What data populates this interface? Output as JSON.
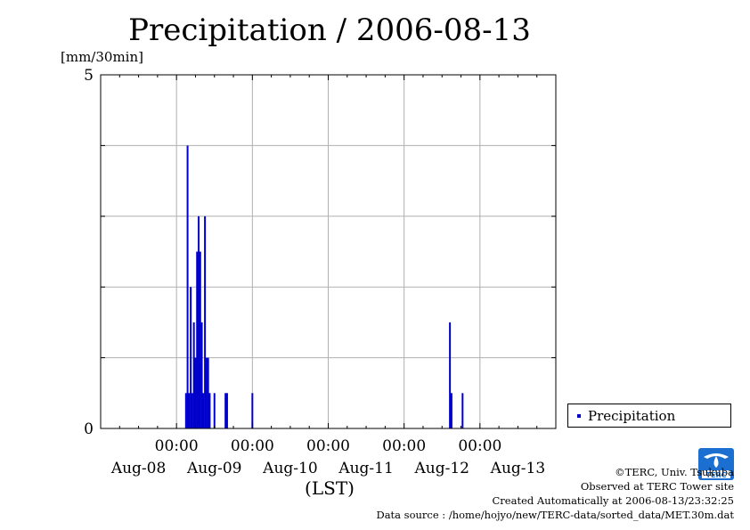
{
  "title": "Precipitation / 2006-08-13",
  "unit": "[mm/30min]",
  "legend_label": "Precipitation",
  "credits": {
    "copyright": "©TERC, Univ. Tsukuba",
    "site": "Observed at TERC Tower site",
    "created": "Created Automatically at 2006-08-13/23:32:25",
    "source": "Data source : /home/hojyo/new/TERC-data/sorted_data/MET.30m.dat"
  },
  "logo_text": "TERC",
  "colors": {
    "bar": "#0000cc",
    "grid": "#b0b0b0",
    "axis": "#000000"
  },
  "chart_data": {
    "type": "bar",
    "title": "Precipitation / 2006-08-13",
    "ylabel": "[mm/30min]",
    "xlabel": "(LST)",
    "ylim": [
      0,
      5
    ],
    "y_ticks": [
      {
        "value": 0,
        "label": "0"
      },
      {
        "value": 5,
        "label": "5"
      }
    ],
    "y_gridlines": [
      1,
      2,
      3,
      4
    ],
    "xlim": [
      "2006-08-08T00:00",
      "2006-08-14T00:00"
    ],
    "x_ticks": [
      {
        "t": "2006-08-09T00:00",
        "time": "00:00"
      },
      {
        "t": "2006-08-10T00:00",
        "time": "00:00"
      },
      {
        "t": "2006-08-11T00:00",
        "time": "00:00"
      },
      {
        "t": "2006-08-12T00:00",
        "time": "00:00"
      },
      {
        "t": "2006-08-13T00:00",
        "time": "00:00"
      }
    ],
    "x_day_labels": [
      {
        "t": "2006-08-08T12:00",
        "label": "Aug-08"
      },
      {
        "t": "2006-08-09T12:00",
        "label": "Aug-09"
      },
      {
        "t": "2006-08-10T12:00",
        "label": "Aug-10"
      },
      {
        "t": "2006-08-11T12:00",
        "label": "Aug-11"
      },
      {
        "t": "2006-08-12T12:00",
        "label": "Aug-12"
      },
      {
        "t": "2006-08-13T12:00",
        "label": "Aug-13"
      }
    ],
    "series": [
      {
        "name": "Precipitation",
        "points": [
          {
            "t": "2006-08-09T03:00",
            "v": 0.5
          },
          {
            "t": "2006-08-09T03:30",
            "v": 4.0
          },
          {
            "t": "2006-08-09T04:00",
            "v": 0.5
          },
          {
            "t": "2006-08-09T04:30",
            "v": 2.0
          },
          {
            "t": "2006-08-09T05:00",
            "v": 0.5
          },
          {
            "t": "2006-08-09T05:30",
            "v": 1.5
          },
          {
            "t": "2006-08-09T06:00",
            "v": 1.0
          },
          {
            "t": "2006-08-09T06:30",
            "v": 2.5
          },
          {
            "t": "2006-08-09T07:00",
            "v": 3.0
          },
          {
            "t": "2006-08-09T07:30",
            "v": 2.5
          },
          {
            "t": "2006-08-09T08:00",
            "v": 1.5
          },
          {
            "t": "2006-08-09T08:30",
            "v": 0.5
          },
          {
            "t": "2006-08-09T09:00",
            "v": 3.0
          },
          {
            "t": "2006-08-09T09:30",
            "v": 1.0
          },
          {
            "t": "2006-08-09T10:00",
            "v": 1.0
          },
          {
            "t": "2006-08-09T10:30",
            "v": 0.5
          },
          {
            "t": "2006-08-09T12:00",
            "v": 0.5
          },
          {
            "t": "2006-08-09T15:30",
            "v": 0.5
          },
          {
            "t": "2006-08-09T16:00",
            "v": 0.5
          },
          {
            "t": "2006-08-10T00:00",
            "v": 0.5
          },
          {
            "t": "2006-08-12T14:30",
            "v": 1.5
          },
          {
            "t": "2006-08-12T15:00",
            "v": 0.5
          },
          {
            "t": "2006-08-12T18:30",
            "v": 0.5
          }
        ]
      }
    ]
  }
}
